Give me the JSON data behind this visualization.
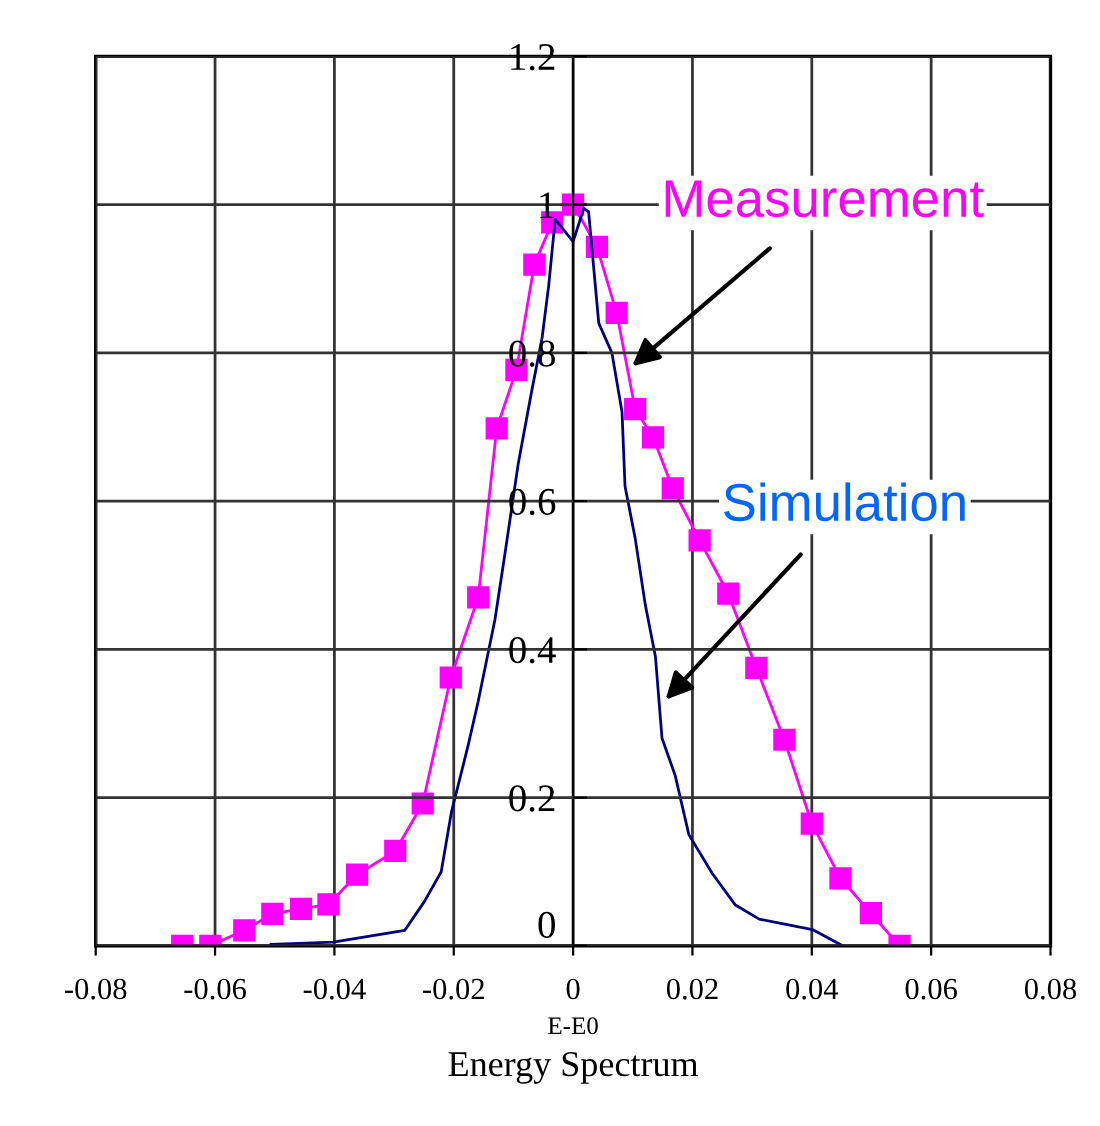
{
  "chart_data": {
    "type": "line",
    "title": "Energy Spectrum",
    "xlabel": "E-E0",
    "xlim": [
      -0.08,
      0.08
    ],
    "xticks": [
      -0.08,
      -0.06,
      -0.04,
      -0.02,
      0,
      0.02,
      0.04,
      0.06,
      0.08
    ],
    "ylim": [
      0,
      1.2
    ],
    "yticks": [
      0,
      0.2,
      0.4,
      0.6,
      0.8,
      1,
      1.2
    ],
    "grid": true,
    "series": [
      {
        "color": "#ff00ff",
        "marker": "square",
        "x": [
          -0.0655,
          -0.0608,
          -0.0551,
          -0.0504,
          -0.0456,
          -0.041,
          -0.0362,
          -0.0298,
          -0.0252,
          -0.0205,
          -0.0159,
          -0.0128,
          -0.0095,
          -0.0065,
          -0.0035,
          0.0,
          0.004,
          0.0073,
          0.0104,
          0.0134,
          0.0167,
          0.0212,
          0.026,
          0.0307,
          0.0354,
          0.04,
          0.0448,
          0.0499,
          0.0547
        ],
        "values": [
          0.0,
          0.0,
          0.021,
          0.043,
          0.05,
          0.056,
          0.096,
          0.128,
          0.192,
          0.362,
          0.47,
          0.698,
          0.777,
          0.919,
          0.976,
          1.0,
          0.943,
          0.854,
          0.724,
          0.686,
          0.617,
          0.547,
          0.475,
          0.375,
          0.278,
          0.165,
          0.091,
          0.044,
          0.0
        ]
      },
      {
        "color": "#000080",
        "marker": "none",
        "x": [
          -0.0506,
          -0.0402,
          -0.0282,
          -0.0249,
          -0.0221,
          -0.0204,
          -0.0176,
          -0.0159,
          -0.0131,
          -0.0114,
          -0.0092,
          -0.0069,
          -0.0052,
          -0.0041,
          -0.003,
          0.0,
          0.0018,
          0.0026,
          0.0043,
          0.0065,
          0.0082,
          0.0087,
          0.0104,
          0.0121,
          0.0138,
          0.0149,
          0.0171,
          0.0194,
          0.0233,
          0.0272,
          0.0312,
          0.0401,
          0.0452
        ],
        "values": [
          0.002,
          0.005,
          0.021,
          0.06,
          0.1,
          0.18,
          0.27,
          0.33,
          0.44,
          0.53,
          0.65,
          0.75,
          0.82,
          0.89,
          0.98,
          0.95,
          0.995,
          0.99,
          0.84,
          0.8,
          0.72,
          0.62,
          0.55,
          0.46,
          0.39,
          0.28,
          0.23,
          0.15,
          0.098,
          0.055,
          0.036,
          0.022,
          0.0
        ]
      }
    ],
    "annotations": [
      {
        "text": "Measurement",
        "x": 0.0099,
        "y": 0.782
      },
      {
        "text": "Simulation",
        "x": 0.0155,
        "y": 0.332
      }
    ]
  }
}
